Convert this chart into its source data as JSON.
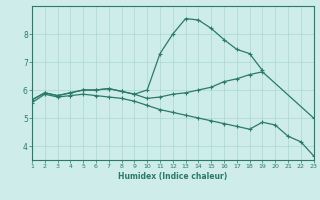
{
  "xlabel": "Humidex (Indice chaleur)",
  "bg_color": "#ceecea",
  "grid_color": "#a8d8d4",
  "line_color": "#2a7a6a",
  "xlim": [
    1,
    23
  ],
  "ylim": [
    3.5,
    9.0
  ],
  "yticks": [
    4,
    5,
    6,
    7,
    8
  ],
  "xticks": [
    1,
    2,
    3,
    4,
    5,
    6,
    7,
    8,
    9,
    10,
    11,
    12,
    13,
    14,
    15,
    16,
    17,
    18,
    19,
    20,
    21,
    22,
    23
  ],
  "series": [
    {
      "x": [
        1,
        2,
        3,
        4,
        5,
        6,
        7,
        8,
        9,
        10,
        11,
        12,
        13,
        14,
        15,
        16,
        17,
        18,
        19
      ],
      "y": [
        5.65,
        5.9,
        5.8,
        5.9,
        6.0,
        6.0,
        6.05,
        5.95,
        5.85,
        6.0,
        7.3,
        8.0,
        8.55,
        8.5,
        8.2,
        7.8,
        7.45,
        7.3,
        6.7
      ]
    },
    {
      "x": [
        1,
        2,
        3,
        4,
        5,
        6,
        7,
        8,
        9,
        10,
        11,
        12,
        13,
        14,
        15,
        16,
        17,
        18,
        19,
        23
      ],
      "y": [
        5.65,
        5.9,
        5.8,
        5.9,
        6.0,
        6.0,
        6.05,
        5.95,
        5.85,
        5.7,
        5.75,
        5.85,
        5.9,
        6.0,
        6.1,
        6.3,
        6.4,
        6.55,
        6.65,
        5.0
      ]
    },
    {
      "x": [
        1,
        2,
        3,
        4,
        5,
        6,
        7,
        8,
        9,
        10,
        11,
        12,
        13,
        14,
        15,
        16,
        17,
        18,
        19,
        20,
        21,
        22,
        23
      ],
      "y": [
        5.55,
        5.85,
        5.75,
        5.8,
        5.85,
        5.8,
        5.75,
        5.7,
        5.6,
        5.45,
        5.3,
        5.2,
        5.1,
        5.0,
        4.9,
        4.8,
        4.7,
        4.6,
        4.85,
        4.75,
        4.35,
        4.15,
        3.65
      ]
    }
  ]
}
